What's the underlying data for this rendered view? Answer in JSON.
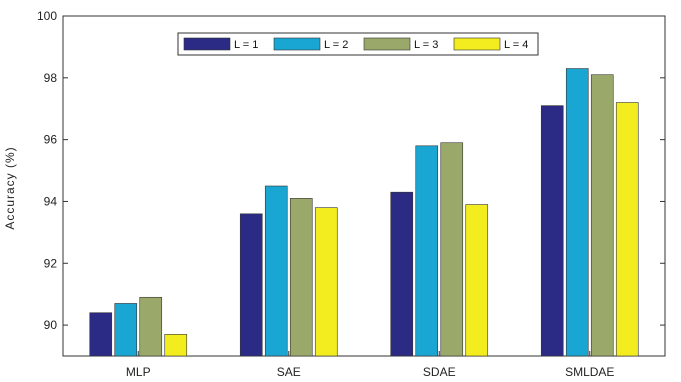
{
  "chart_data": {
    "type": "bar",
    "ylabel": "Accuracy   (%)",
    "ylim": [
      89,
      100
    ],
    "yticks": [
      90,
      92,
      94,
      96,
      98,
      100
    ],
    "categories": [
      "MLP",
      "SAE",
      "SDAE",
      "SMLDAE"
    ],
    "series": [
      {
        "name": "L = 1",
        "color": "#2b2b86",
        "values": [
          90.4,
          93.6,
          94.3,
          97.1
        ]
      },
      {
        "name": "L = 2",
        "color": "#1aa6d2",
        "values": [
          90.7,
          94.5,
          95.8,
          98.3
        ]
      },
      {
        "name": "L = 3",
        "color": "#9aa96a",
        "values": [
          90.9,
          94.1,
          95.9,
          98.1
        ]
      },
      {
        "name": "L = 4",
        "color": "#f3ec1e",
        "values": [
          89.7,
          93.8,
          93.9,
          97.2
        ]
      }
    ],
    "legend": "top-center",
    "grid": false
  }
}
